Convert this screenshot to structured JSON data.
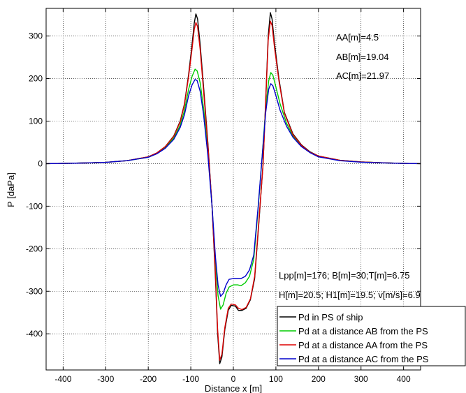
{
  "chart_data": {
    "type": "line",
    "xlabel": "Distance x [m]",
    "ylabel": "P [daPa]",
    "xlim": [
      -440,
      440
    ],
    "ylim": [
      -485,
      365
    ],
    "xticks": [
      -400,
      -300,
      -200,
      -100,
      0,
      100,
      200,
      300,
      400
    ],
    "yticks": [
      -400,
      -300,
      -200,
      -100,
      0,
      100,
      200,
      300
    ],
    "grid": true,
    "legend_position": "bottom-right",
    "annotations": [
      "AA[m]=4.5",
      "AB[m]=19.04",
      "AC[m]=21.97",
      "Lpp[m]=176; B[m]=30;T[m]=6.75",
      "H[m]=20.5; H1[m]=19.5; v[m/s]=6.9"
    ],
    "series": [
      {
        "name": "Pd in PS of ship",
        "color": "#000000",
        "points": [
          [
            -440,
            0
          ],
          [
            -400,
            0.5
          ],
          [
            -350,
            1.5
          ],
          [
            -300,
            3
          ],
          [
            -250,
            7
          ],
          [
            -200,
            16
          ],
          [
            -180,
            25
          ],
          [
            -160,
            40
          ],
          [
            -140,
            65
          ],
          [
            -125,
            100
          ],
          [
            -115,
            140
          ],
          [
            -105,
            210
          ],
          [
            -97,
            280
          ],
          [
            -92,
            330
          ],
          [
            -88,
            352
          ],
          [
            -84,
            340
          ],
          [
            -78,
            280
          ],
          [
            -70,
            180
          ],
          [
            -60,
            50
          ],
          [
            -50,
            -100
          ],
          [
            -42,
            -270
          ],
          [
            -37,
            -400
          ],
          [
            -32,
            -470
          ],
          [
            -27,
            -455
          ],
          [
            -20,
            -390
          ],
          [
            -12,
            -345
          ],
          [
            -5,
            -333
          ],
          [
            5,
            -335
          ],
          [
            12,
            -345
          ],
          [
            20,
            -345
          ],
          [
            30,
            -340
          ],
          [
            40,
            -320
          ],
          [
            50,
            -270
          ],
          [
            60,
            -140
          ],
          [
            70,
            0
          ],
          [
            76,
            150
          ],
          [
            82,
            300
          ],
          [
            87,
            355
          ],
          [
            91,
            340
          ],
          [
            97,
            280
          ],
          [
            107,
            200
          ],
          [
            120,
            120
          ],
          [
            140,
            70
          ],
          [
            160,
            44
          ],
          [
            180,
            28
          ],
          [
            200,
            18
          ],
          [
            250,
            8
          ],
          [
            300,
            4
          ],
          [
            350,
            2
          ],
          [
            400,
            0.5
          ],
          [
            440,
            0
          ]
        ]
      },
      {
        "name": "Pd at a distance AB from the PS",
        "color": "#00cc00",
        "points": [
          [
            -440,
            0
          ],
          [
            -400,
            0.5
          ],
          [
            -350,
            1.5
          ],
          [
            -300,
            3
          ],
          [
            -250,
            7
          ],
          [
            -200,
            15
          ],
          [
            -180,
            24
          ],
          [
            -160,
            38
          ],
          [
            -140,
            60
          ],
          [
            -125,
            90
          ],
          [
            -115,
            125
          ],
          [
            -105,
            175
          ],
          [
            -97,
            205
          ],
          [
            -90,
            222
          ],
          [
            -85,
            218
          ],
          [
            -78,
            190
          ],
          [
            -70,
            130
          ],
          [
            -60,
            30
          ],
          [
            -50,
            -100
          ],
          [
            -42,
            -230
          ],
          [
            -36,
            -310
          ],
          [
            -30,
            -342
          ],
          [
            -24,
            -332
          ],
          [
            -17,
            -305
          ],
          [
            -10,
            -290
          ],
          [
            0,
            -285
          ],
          [
            10,
            -285
          ],
          [
            18,
            -287
          ],
          [
            28,
            -280
          ],
          [
            38,
            -265
          ],
          [
            48,
            -225
          ],
          [
            58,
            -110
          ],
          [
            68,
            20
          ],
          [
            76,
            130
          ],
          [
            83,
            195
          ],
          [
            88,
            214
          ],
          [
            93,
            208
          ],
          [
            100,
            180
          ],
          [
            110,
            140
          ],
          [
            125,
            95
          ],
          [
            140,
            65
          ],
          [
            160,
            42
          ],
          [
            180,
            27
          ],
          [
            200,
            17
          ],
          [
            250,
            8
          ],
          [
            300,
            4
          ],
          [
            350,
            2
          ],
          [
            400,
            0.5
          ],
          [
            440,
            0
          ]
        ]
      },
      {
        "name": "Pd at a distance AA from the PS",
        "color": "#dd0000",
        "points": [
          [
            -440,
            0
          ],
          [
            -400,
            0.5
          ],
          [
            -350,
            1.5
          ],
          [
            -300,
            3
          ],
          [
            -250,
            7
          ],
          [
            -200,
            16
          ],
          [
            -180,
            25
          ],
          [
            -160,
            40
          ],
          [
            -140,
            64
          ],
          [
            -125,
            98
          ],
          [
            -115,
            138
          ],
          [
            -105,
            205
          ],
          [
            -97,
            270
          ],
          [
            -92,
            315
          ],
          [
            -88,
            332
          ],
          [
            -84,
            322
          ],
          [
            -78,
            268
          ],
          [
            -70,
            170
          ],
          [
            -60,
            45
          ],
          [
            -50,
            -100
          ],
          [
            -42,
            -260
          ],
          [
            -37,
            -390
          ],
          [
            -32,
            -462
          ],
          [
            -27,
            -448
          ],
          [
            -20,
            -385
          ],
          [
            -12,
            -340
          ],
          [
            -5,
            -330
          ],
          [
            5,
            -332
          ],
          [
            12,
            -340
          ],
          [
            20,
            -343
          ],
          [
            30,
            -338
          ],
          [
            40,
            -318
          ],
          [
            50,
            -265
          ],
          [
            60,
            -135
          ],
          [
            70,
            0
          ],
          [
            76,
            145
          ],
          [
            82,
            290
          ],
          [
            87,
            335
          ],
          [
            91,
            325
          ],
          [
            97,
            270
          ],
          [
            107,
            195
          ],
          [
            120,
            118
          ],
          [
            140,
            68
          ],
          [
            160,
            43
          ],
          [
            180,
            27
          ],
          [
            200,
            18
          ],
          [
            250,
            8
          ],
          [
            300,
            4
          ],
          [
            350,
            2
          ],
          [
            400,
            0.5
          ],
          [
            440,
            0
          ]
        ]
      },
      {
        "name": "Pd at a distance AC from the PS",
        "color": "#0000cc",
        "points": [
          [
            -440,
            0
          ],
          [
            -400,
            0.5
          ],
          [
            -350,
            1.5
          ],
          [
            -300,
            3
          ],
          [
            -250,
            7
          ],
          [
            -200,
            15
          ],
          [
            -180,
            23
          ],
          [
            -160,
            36
          ],
          [
            -140,
            57
          ],
          [
            -125,
            85
          ],
          [
            -115,
            115
          ],
          [
            -105,
            160
          ],
          [
            -97,
            185
          ],
          [
            -90,
            198
          ],
          [
            -85,
            195
          ],
          [
            -78,
            170
          ],
          [
            -70,
            115
          ],
          [
            -60,
            20
          ],
          [
            -50,
            -100
          ],
          [
            -42,
            -220
          ],
          [
            -36,
            -285
          ],
          [
            -30,
            -312
          ],
          [
            -24,
            -305
          ],
          [
            -17,
            -285
          ],
          [
            -10,
            -272
          ],
          [
            0,
            -270
          ],
          [
            10,
            -270
          ],
          [
            18,
            -270
          ],
          [
            28,
            -265
          ],
          [
            38,
            -250
          ],
          [
            48,
            -215
          ],
          [
            58,
            -105
          ],
          [
            68,
            20
          ],
          [
            76,
            120
          ],
          [
            83,
            175
          ],
          [
            88,
            188
          ],
          [
            93,
            183
          ],
          [
            100,
            160
          ],
          [
            110,
            125
          ],
          [
            125,
            88
          ],
          [
            140,
            62
          ],
          [
            160,
            40
          ],
          [
            180,
            26
          ],
          [
            200,
            16
          ],
          [
            250,
            7
          ],
          [
            300,
            3.5
          ],
          [
            350,
            1.8
          ],
          [
            400,
            0.5
          ],
          [
            440,
            0
          ]
        ]
      }
    ]
  }
}
